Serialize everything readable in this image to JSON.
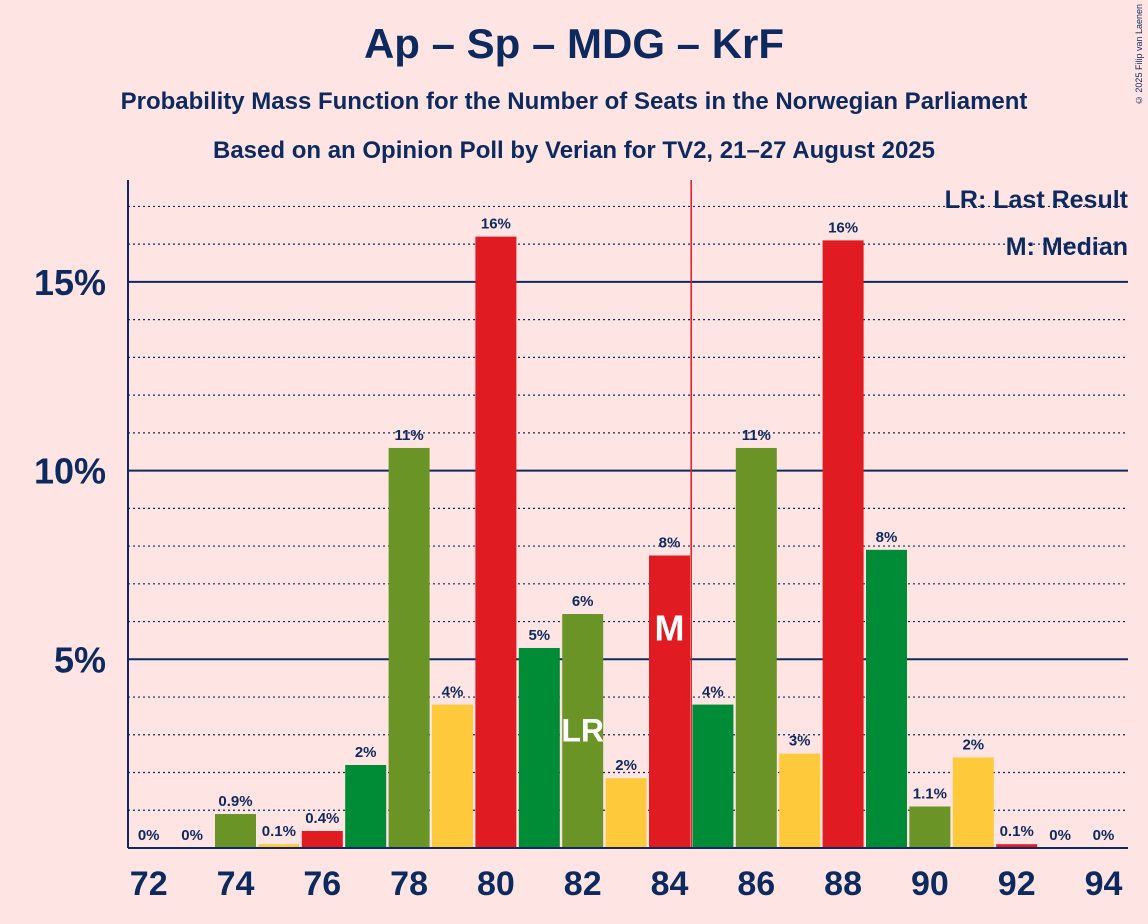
{
  "chart_data": {
    "type": "bar",
    "title": "Ap – Sp – MDG – KrF",
    "subtitle": "Probability Mass Function for the Number of Seats in the Norwegian Parliament",
    "subtitle2": "Based on an Opinion Poll by Verian for TV2, 21–27 August 2025",
    "copyright": "© 2025 Filip van Laenen",
    "xlabel": "",
    "ylabel": "",
    "ylim": [
      0,
      17.7
    ],
    "y_ticks": [
      5,
      10,
      15
    ],
    "y_tick_labels": [
      "5%",
      "10%",
      "15%"
    ],
    "x_tick_labels": [
      "72",
      "74",
      "76",
      "78",
      "80",
      "82",
      "84",
      "86",
      "88",
      "90",
      "92",
      "94"
    ],
    "categories": [
      72,
      73,
      74,
      75,
      76,
      77,
      78,
      79,
      80,
      81,
      82,
      83,
      84,
      85,
      86,
      87,
      88,
      89,
      90,
      91,
      92,
      93,
      94
    ],
    "values": [
      0,
      0,
      0.9,
      0.1,
      0.45,
      2.2,
      10.6,
      3.8,
      16.2,
      5.3,
      6.2,
      1.85,
      7.75,
      3.8,
      10.6,
      2.5,
      16.1,
      7.9,
      1.1,
      2.4,
      0.1,
      0,
      0
    ],
    "labels": [
      "0%",
      "0%",
      "0.9%",
      "0.1%",
      "0.4%",
      "2%",
      "11%",
      "4%",
      "16%",
      "5%",
      "6%",
      "2%",
      "8%",
      "4%",
      "11%",
      "3%",
      "16%",
      "8%",
      "1.1%",
      "2%",
      "0.1%",
      "0%",
      "0%"
    ],
    "bar_colors": [
      "#6A9426",
      "#6A9426",
      "#6A9426",
      "#FFC93C",
      "#E01B22",
      "#008B37",
      "#6A9426",
      "#FFC93C",
      "#E01B22",
      "#008B37",
      "#6A9426",
      "#FFC93C",
      "#E01B22",
      "#008B37",
      "#6A9426",
      "#FFC93C",
      "#E01B22",
      "#008B37",
      "#6A9426",
      "#FFC93C",
      "#E01B22",
      "#008B37",
      "#6A9426"
    ],
    "majority_line_seat": 84.5,
    "median_seat": 84,
    "median_marker": "M",
    "last_result_seat": 82,
    "last_result_marker": "LR",
    "legend": {
      "last_result": "LR: Last Result",
      "median": "M: Median"
    },
    "colors": {
      "background": "#FFE4E4",
      "axis": "#0D2A5E",
      "majority_line": "#E01B22"
    }
  }
}
